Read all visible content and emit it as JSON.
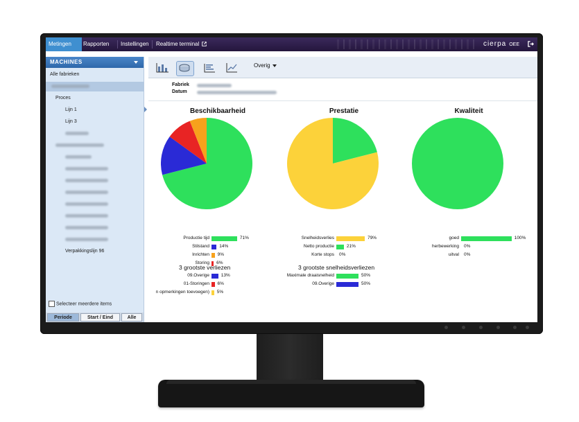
{
  "nav": {
    "tabs": [
      "Metingen",
      "Rapporten",
      "Instellingen",
      "Realtime terminal"
    ],
    "active": 0,
    "brand": "cierpa",
    "brand_suffix": "OEE"
  },
  "sidebar": {
    "header": "MACHINES",
    "all_factories": "Alle fabrieken",
    "proces": "Proces",
    "lines": [
      "Lijn 1",
      "Lijn 3"
    ],
    "packaging_line": "Verpakkingslijn 96",
    "select_multiple": "Selecteer meerdere items",
    "buttons": [
      "Periode",
      "Start / Eind",
      "Alle"
    ]
  },
  "toolbar": {
    "dropdown_label": "Overig",
    "icons": [
      "bar-chart-icon",
      "database-icon",
      "list-chart-icon",
      "line-chart-icon"
    ]
  },
  "meta": {
    "fabriek_label": "Fabriek",
    "datum_label": "Datum"
  },
  "charts": [
    {
      "title": "Beschikbaarheid",
      "slices": [
        {
          "label": "Productie tijd",
          "value": 71,
          "pct": "71%",
          "color": "#2ee05c"
        },
        {
          "label": "Stilstand",
          "value": 14,
          "pct": "14%",
          "color": "#2a2ad6"
        },
        {
          "label": "Inrichten",
          "value": 9,
          "pct": "9%",
          "color": "#e82424"
        },
        {
          "label": "Storing",
          "value": 6,
          "pct": "6%",
          "color": "#f7a21c"
        }
      ]
    },
    {
      "title": "Prestatie",
      "slices": [
        {
          "label": "Netto productie",
          "value": 21,
          "pct": "21%",
          "color": "#2ee05c"
        },
        {
          "label": "Snelheidsverlies",
          "value": 79,
          "pct": "79%",
          "color": "#fcd23a"
        },
        {
          "label": "Korte stops",
          "value": 0,
          "pct": "0%",
          "color": "#c8c8c8"
        }
      ]
    },
    {
      "title": "Kwaliteit",
      "slices": [
        {
          "label": "goed",
          "value": 100,
          "pct": "100%",
          "color": "#2ee05c"
        },
        {
          "label": "herbewerking",
          "value": 0,
          "pct": "0%",
          "color": "#fcd23a"
        },
        {
          "label": "uitval",
          "value": 0,
          "pct": "0%",
          "color": "#e82424"
        }
      ]
    }
  ],
  "legend_bars": [
    [
      {
        "label": "Productie tijd",
        "pct": "71%",
        "value": 71,
        "color": "#2ee05c"
      },
      {
        "label": "Stilstand",
        "pct": "14%",
        "value": 14,
        "color": "#2a2ad6"
      },
      {
        "label": "Inrichten",
        "pct": "9%",
        "value": 9,
        "color": "#f7a21c"
      },
      {
        "label": "Storing",
        "pct": "6%",
        "value": 6,
        "color": "#e82424"
      }
    ],
    [
      {
        "label": "Snelheidsverlies",
        "pct": "79%",
        "value": 79,
        "color": "#fcd23a"
      },
      {
        "label": "Netto productie",
        "pct": "21%",
        "value": 21,
        "color": "#2ee05c"
      },
      {
        "label": "Korte stops",
        "pct": "0%",
        "value": 0,
        "color": "#c8c8c8"
      }
    ],
    [
      {
        "label": "goed",
        "pct": "100%",
        "value": 100,
        "color": "#2ee05c"
      },
      {
        "label": "herbewerking",
        "pct": "0%",
        "value": 0,
        "color": "#fcd23a"
      },
      {
        "label": "uitval",
        "pct": "0%",
        "value": 0,
        "color": "#e82424"
      }
    ]
  ],
  "losses": {
    "title": "3 grootste verliezen",
    "items": [
      {
        "label": "09.Overige",
        "pct": "13%",
        "value": 13,
        "color": "#2a2ad6"
      },
      {
        "label": "01-Storingen",
        "pct": "6%",
        "value": 6,
        "color": "#e82424"
      },
      {
        "label": "n opmerkingen toevoegen)",
        "pct": "5%",
        "value": 5,
        "color": "#fcd23a"
      }
    ]
  },
  "speed_losses": {
    "title": "3 grootste snelheidsverliezen",
    "items": [
      {
        "label": "Maximale draaisnelheid",
        "pct": "50%",
        "value": 50,
        "color": "#2ee05c"
      },
      {
        "label": "09.Overige",
        "pct": "50%",
        "value": 50,
        "color": "#2a2ad6"
      }
    ]
  }
}
